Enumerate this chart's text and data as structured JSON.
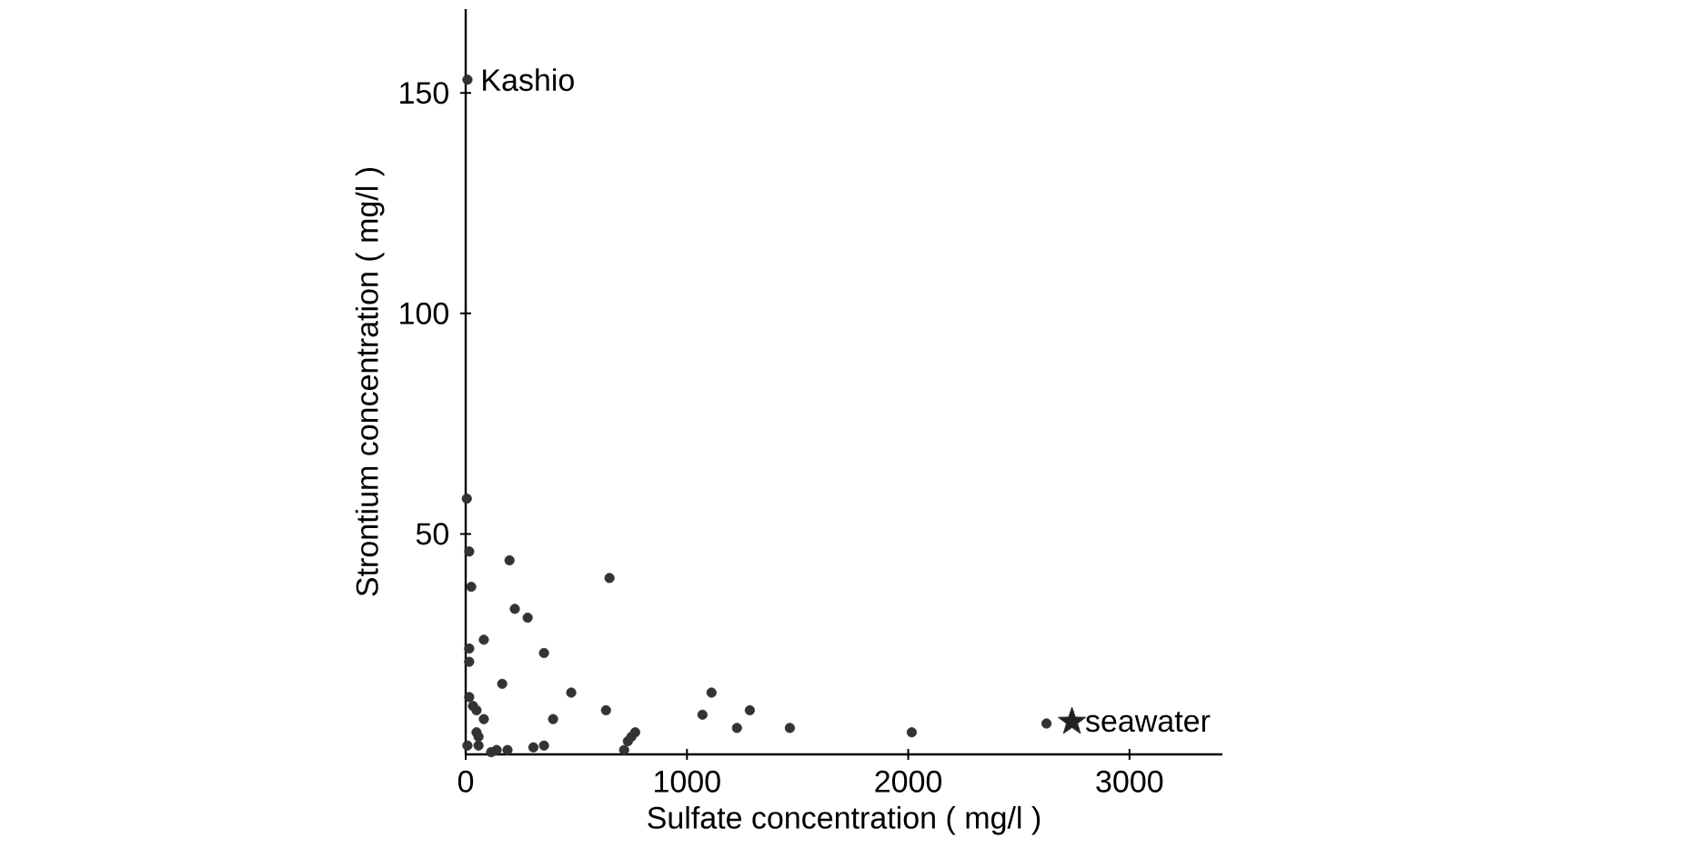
{
  "chart_data": {
    "type": "scatter",
    "xlabel": "Sulfate concentration ( mg/l )",
    "ylabel": "Strontium concentration ( mg/l )",
    "xlim": [
      0,
      3420
    ],
    "ylim": [
      0,
      169
    ],
    "xticks": [
      0,
      1000,
      2000,
      3000
    ],
    "yticks": [
      50,
      100,
      150
    ],
    "series": [
      {
        "color": "#333333",
        "marker": "circle",
        "x": [
          8,
          5,
          16,
          25,
          16,
          16,
          82,
          198,
          222,
          280,
          354,
          165,
          477,
          395,
          634,
          650,
          1070,
          1111,
          1284,
          1226,
          1465,
          2016,
          2625,
          8,
          354,
          306,
          716,
          733,
          749,
          766,
          140,
          189,
          115,
          58,
          82,
          49,
          16,
          33,
          49,
          58
        ],
        "values": [
          153,
          58,
          46,
          38,
          24,
          21,
          26,
          44,
          33,
          31,
          23,
          16,
          14,
          8,
          10,
          40,
          9,
          14,
          10,
          6,
          6,
          5,
          7,
          2,
          2,
          1.6,
          1,
          3,
          4,
          5,
          1,
          1,
          0.5,
          2,
          8,
          10,
          13,
          11,
          5,
          4
        ]
      },
      {
        "color": "#222222",
        "marker": "star",
        "x": [
          2740
        ],
        "values": [
          7.4
        ]
      }
    ],
    "annotations": [
      {
        "text": "Kashio",
        "x": 8,
        "y": 153
      },
      {
        "text": "seawater",
        "x": 2740,
        "y": 7.4
      }
    ]
  }
}
